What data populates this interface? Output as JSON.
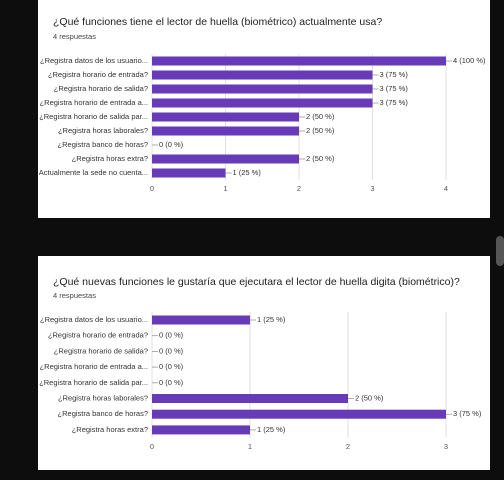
{
  "chart_data": [
    {
      "type": "bar",
      "orientation": "horizontal",
      "title": "¿Qué funciones tiene el lector de huella (biométrico) actualmente usa?",
      "subtitle": "4 respuestas",
      "categories": [
        "¿Registra datos de los usuario...",
        "¿Registra horario de entrada?",
        "¿Registra horario de salida?",
        "¿Registra horario de entrada a...",
        "¿Registra horario de salida par...",
        "¿Registra horas laborales?",
        "¿Registra banco de horas?",
        "¿Registra horas extra?",
        "Actualmente la sede no cuenta..."
      ],
      "values": [
        4,
        3,
        3,
        3,
        2,
        2,
        0,
        2,
        1
      ],
      "value_labels": [
        "4 (100 %)",
        "3 (75 %)",
        "3 (75 %)",
        "3 (75 %)",
        "2 (50 %)",
        "2 (50 %)",
        "0 (0 %)",
        "2 (50 %)",
        "1 (25 %)"
      ],
      "color": "#673ab7",
      "xlim": [
        0,
        4
      ],
      "xticks": [
        0,
        1,
        2,
        3,
        4
      ],
      "grid": true
    },
    {
      "type": "bar",
      "orientation": "horizontal",
      "title": "¿Qué nuevas funciones le gustaría que ejecutara el lector de huella digita (biométrico)?",
      "subtitle": "4 respuestas",
      "categories": [
        "¿Registra datos de los usuario...",
        "¿Registra horario de entrada?",
        "¿Registra horario de salida?",
        "¿Registra horario de entrada a...",
        "¿Registra horario de salida par...",
        "¿Registra horas laborales?",
        "¿Registra banco de horas?",
        "¿Registra horas extra?"
      ],
      "values": [
        1,
        0,
        0,
        0,
        0,
        2,
        3,
        1
      ],
      "value_labels": [
        "1 (25 %)",
        "0 (0 %)",
        "0 (0 %)",
        "0 (0 %)",
        "0 (0 %)",
        "2 (50 %)",
        "3 (75 %)",
        "1 (25 %)"
      ],
      "color": "#673ab7",
      "xlim": [
        0,
        3
      ],
      "xticks": [
        0,
        1,
        2,
        3
      ],
      "grid": true
    }
  ]
}
